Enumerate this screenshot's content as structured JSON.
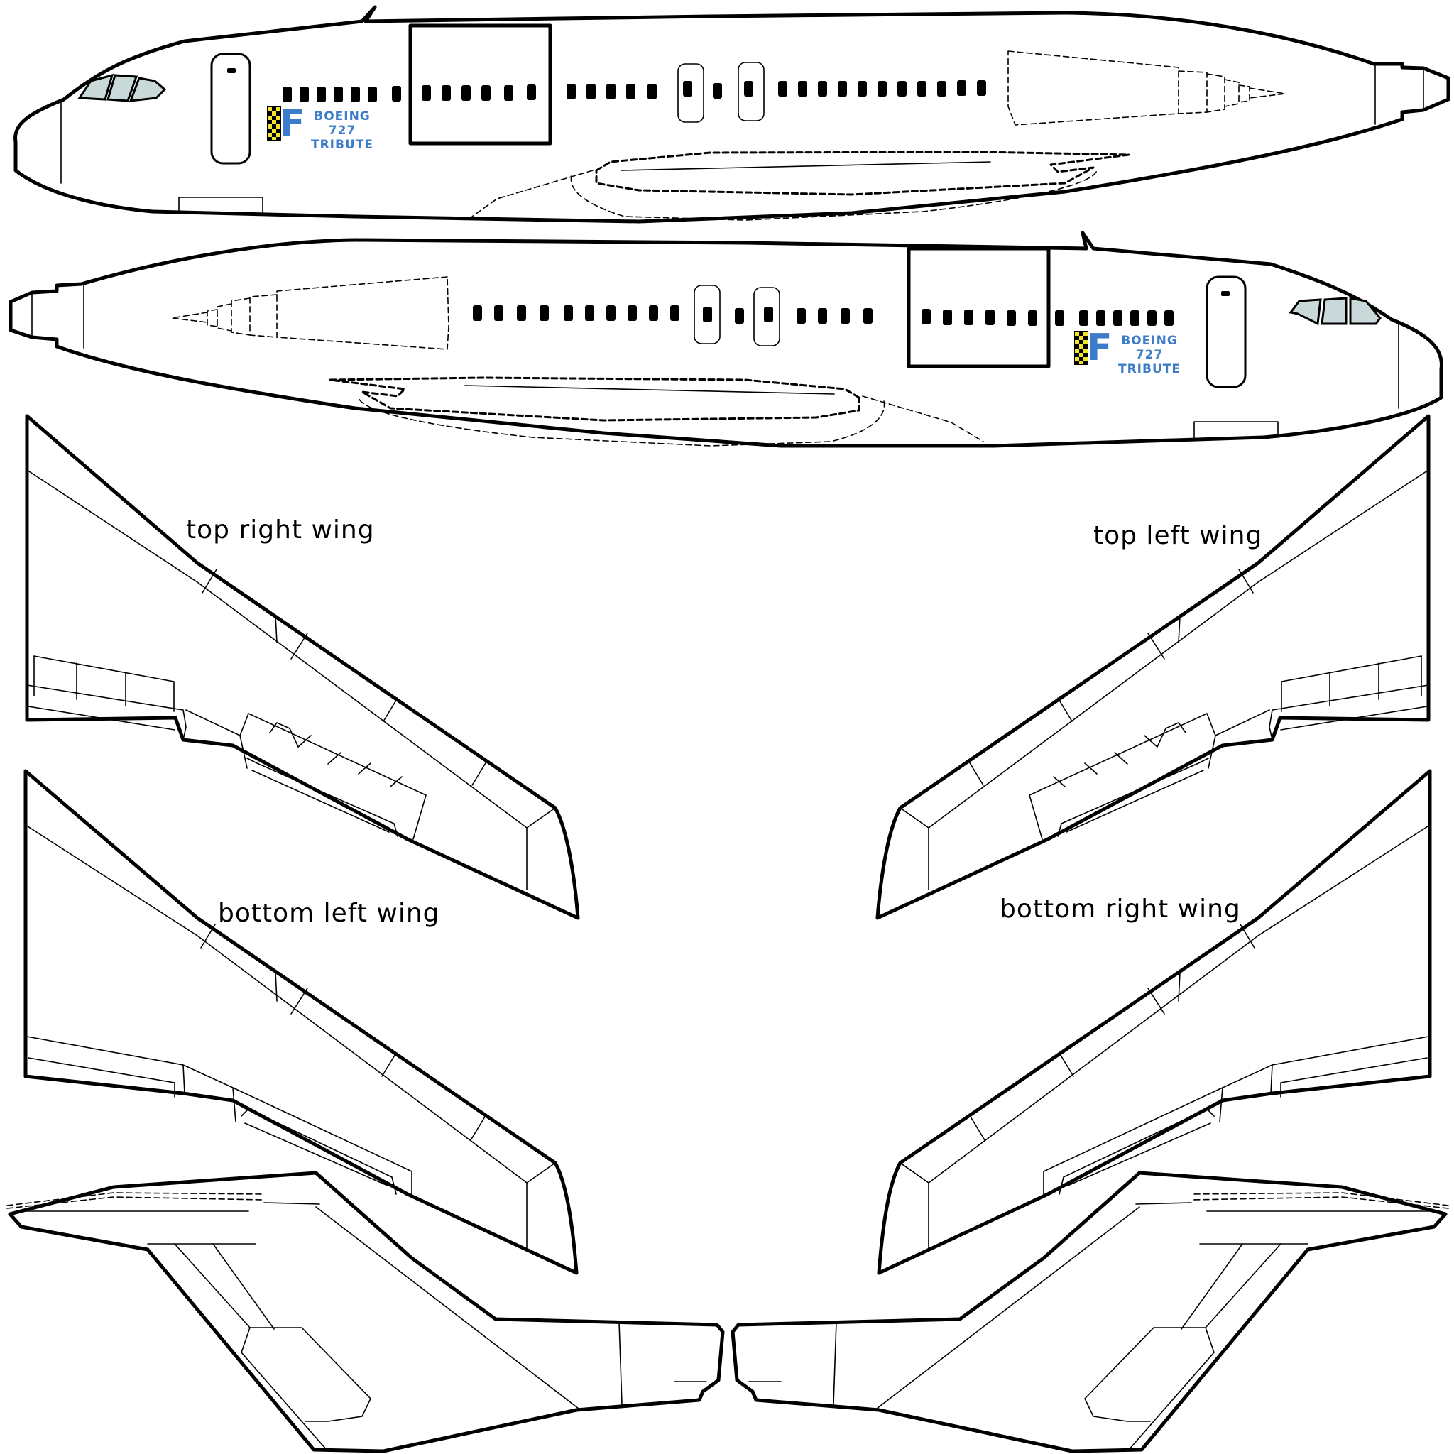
{
  "fuselage_top": {
    "logo_letter": "F",
    "logo_line1": "BOEING 727",
    "logo_line2": "TRIBUTE"
  },
  "fuselage_bottom": {
    "logo_letter": "F",
    "logo_line1": "BOEING 727",
    "logo_line2": "TRIBUTE"
  },
  "wings": {
    "top_right_label": "top right wing",
    "top_left_label": "top left wing",
    "bottom_left_label": "bottom left wing",
    "bottom_right_label": "bottom right wing"
  },
  "colors": {
    "outline": "#000000",
    "logo_blue": "#3d7cc9",
    "cockpit_glass": "#c9d9da",
    "checker_yellow": "#f2e52a"
  }
}
